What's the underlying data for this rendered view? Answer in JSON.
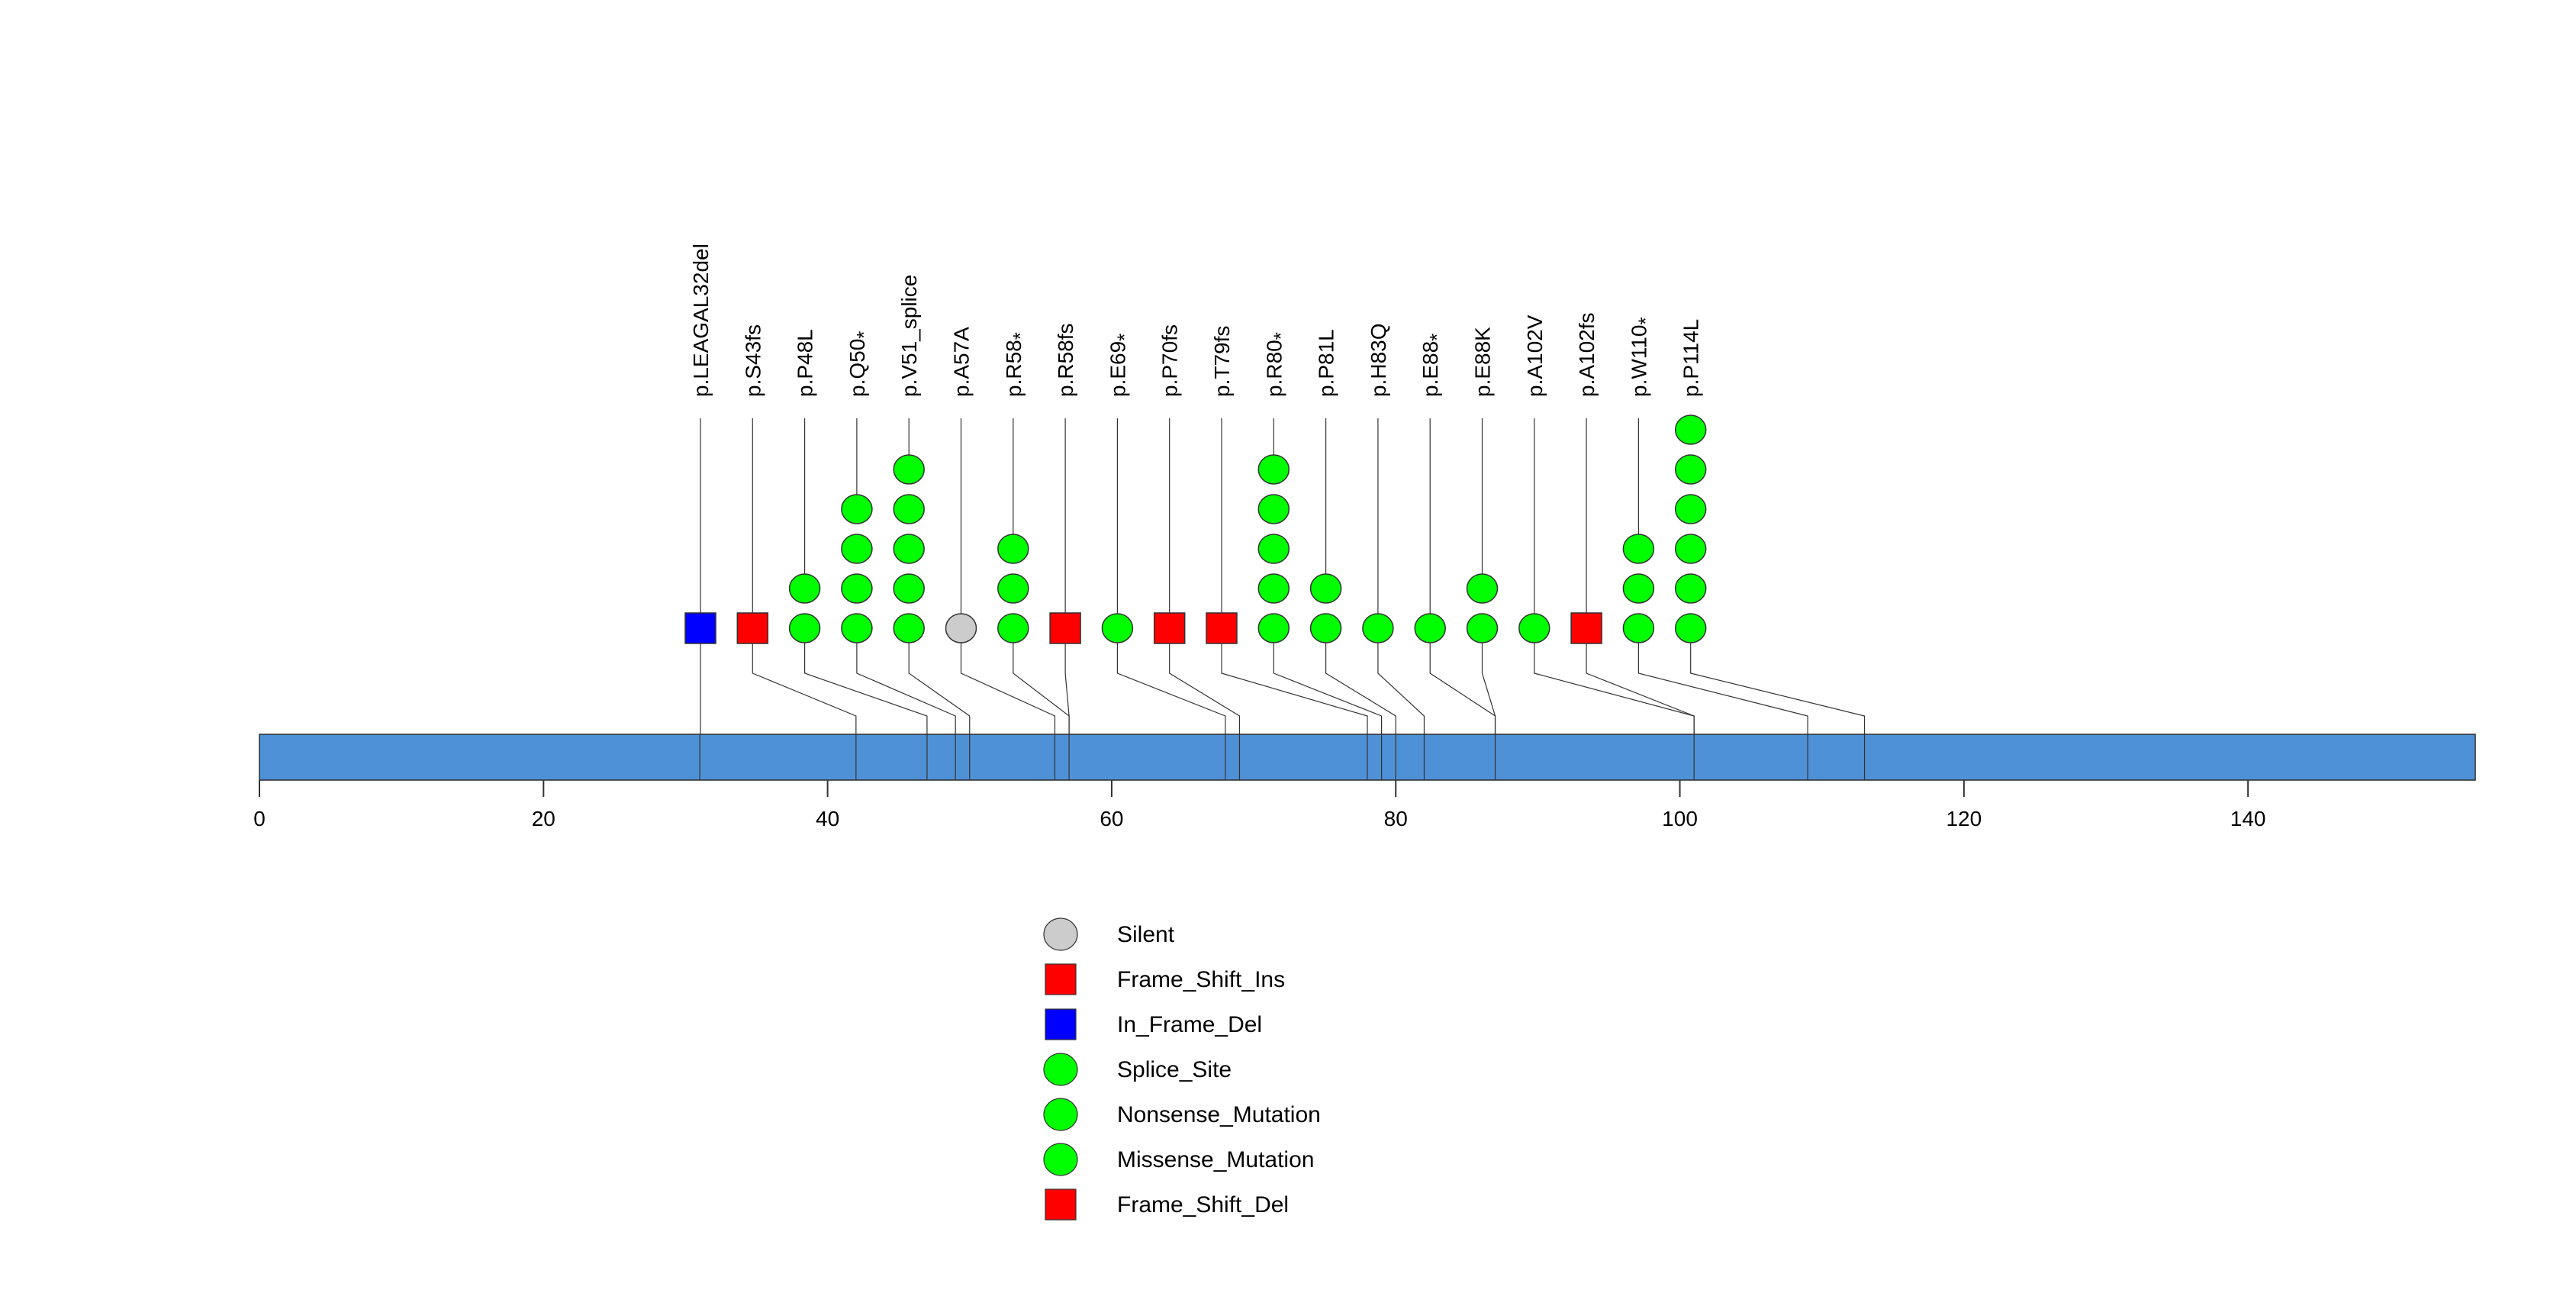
{
  "chart_data": {
    "type": "lollipop",
    "x_domain": [
      0,
      156
    ],
    "xticks": [
      0,
      20,
      40,
      60,
      80,
      100,
      120,
      140
    ],
    "colors": {
      "protein_bar": "#4F91D6",
      "Silent": "#CCCCCC",
      "Frame_Shift_Ins": "#FF0000",
      "In_Frame_Del": "#0000FF",
      "Splice_Site": "#00FF00",
      "Nonsense_Mutation": "#00FF00",
      "Missense_Mutation": "#00FF00",
      "Frame_Shift_Del": "#FF0000"
    },
    "mutations": [
      {
        "label": "p.LEAGAL32del",
        "star": false,
        "position": 31,
        "count": 1,
        "type": "In_Frame_Del"
      },
      {
        "label": "p.S43fs",
        "star": false,
        "position": 42,
        "count": 1,
        "type": "Frame_Shift_Ins"
      },
      {
        "label": "p.P48L",
        "star": false,
        "position": 47,
        "count": 2,
        "type": "Missense_Mutation"
      },
      {
        "label": "p.Q50",
        "star": true,
        "position": 49,
        "count": 4,
        "type": "Nonsense_Mutation"
      },
      {
        "label": "p.V51_splice",
        "star": false,
        "position": 50,
        "count": 5,
        "type": "Splice_Site"
      },
      {
        "label": "p.A57A",
        "star": false,
        "position": 56,
        "count": 1,
        "type": "Silent"
      },
      {
        "label": "p.R58",
        "star": true,
        "position": 57,
        "count": 3,
        "type": "Nonsense_Mutation"
      },
      {
        "label": "p.R58fs",
        "star": false,
        "position": 57,
        "count": 1,
        "type": "Frame_Shift_Ins"
      },
      {
        "label": "p.E69",
        "star": true,
        "position": 68,
        "count": 1,
        "type": "Nonsense_Mutation"
      },
      {
        "label": "p.P70fs",
        "star": false,
        "position": 69,
        "count": 1,
        "type": "Frame_Shift_Del"
      },
      {
        "label": "p.T79fs",
        "star": false,
        "position": 78,
        "count": 1,
        "type": "Frame_Shift_Del"
      },
      {
        "label": "p.R80",
        "star": true,
        "position": 79,
        "count": 5,
        "type": "Nonsense_Mutation"
      },
      {
        "label": "p.P81L",
        "star": false,
        "position": 80,
        "count": 2,
        "type": "Missense_Mutation"
      },
      {
        "label": "p.H83Q",
        "star": false,
        "position": 82,
        "count": 1,
        "type": "Missense_Mutation"
      },
      {
        "label": "p.E88",
        "star": true,
        "position": 87,
        "count": 1,
        "type": "Nonsense_Mutation"
      },
      {
        "label": "p.E88K",
        "star": false,
        "position": 87,
        "count": 2,
        "type": "Missense_Mutation"
      },
      {
        "label": "p.A102V",
        "star": false,
        "position": 101,
        "count": 1,
        "type": "Missense_Mutation"
      },
      {
        "label": "p.A102fs",
        "star": false,
        "position": 101,
        "count": 1,
        "type": "Frame_Shift_Del"
      },
      {
        "label": "p.W110",
        "star": true,
        "position": 109,
        "count": 3,
        "type": "Nonsense_Mutation"
      },
      {
        "label": "p.P114L",
        "star": false,
        "position": 113,
        "count": 6,
        "type": "Missense_Mutation"
      }
    ],
    "legend": [
      {
        "label": "Silent",
        "shape": "circle"
      },
      {
        "label": "Frame_Shift_Ins",
        "shape": "square"
      },
      {
        "label": "In_Frame_Del",
        "shape": "square"
      },
      {
        "label": "Splice_Site",
        "shape": "circle"
      },
      {
        "label": "Nonsense_Mutation",
        "shape": "circle"
      },
      {
        "label": "Missense_Mutation",
        "shape": "circle"
      },
      {
        "label": "Frame_Shift_Del",
        "shape": "square"
      }
    ],
    "star_symbol": "*"
  }
}
